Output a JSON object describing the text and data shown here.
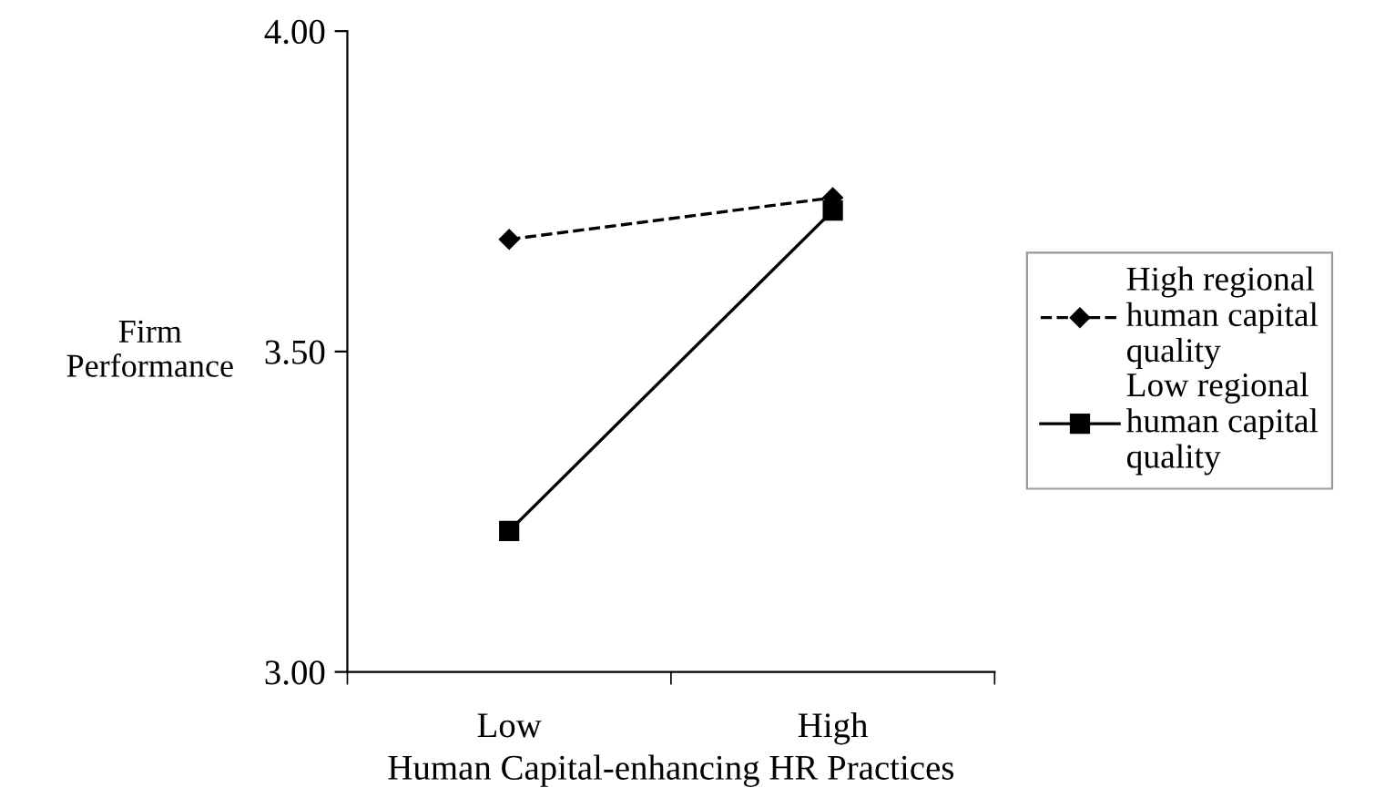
{
  "chart_data": {
    "type": "line",
    "xlabel": "Human Capital-enhancing HR Practices",
    "ylabel": "Firm\nPerformance",
    "categories": [
      "Low",
      "High"
    ],
    "series": [
      {
        "name": "High regional\nhuman capital\nquality",
        "color": "#000000",
        "values": [
          3.675,
          3.74
        ],
        "marker": "diamond",
        "line_style": "dashed"
      },
      {
        "name": "Low regional\nhuman capital\nquality",
        "color": "#000000",
        "values": [
          3.22,
          3.72
        ],
        "marker": "square",
        "line_style": "solid"
      }
    ],
    "ylim": [
      3.0,
      4.0
    ],
    "yticks": [
      {
        "value": 3.0,
        "label": "3.00"
      },
      {
        "value": 3.5,
        "label": "3.50"
      },
      {
        "value": 4.0,
        "label": "4.00"
      }
    ],
    "grid": false,
    "legend": "right"
  }
}
